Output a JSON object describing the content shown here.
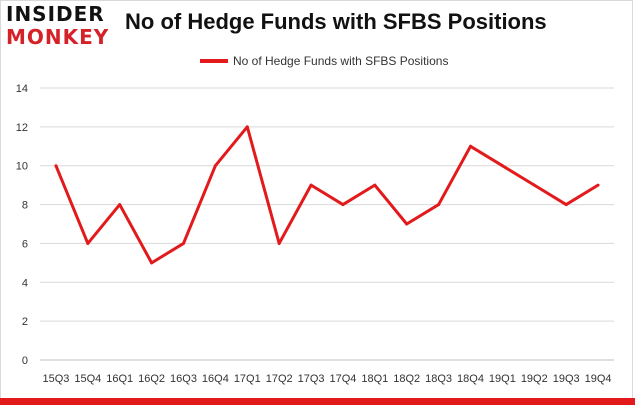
{
  "brand": {
    "line1": "INSIDER",
    "line2": "MONKEY",
    "accent_color": "#d42228"
  },
  "chart_data": {
    "type": "line",
    "title": "No of Hedge Funds with SFBS Positions",
    "xlabel": "",
    "ylabel": "",
    "categories": [
      "15Q3",
      "15Q4",
      "16Q1",
      "16Q2",
      "16Q3",
      "16Q4",
      "17Q1",
      "17Q2",
      "17Q3",
      "17Q4",
      "18Q1",
      "18Q2",
      "18Q3",
      "18Q4",
      "19Q1",
      "19Q2",
      "19Q3",
      "19Q4"
    ],
    "series": [
      {
        "name": "No of Hedge Funds with SFBS Positions",
        "color": "#e31a1c",
        "values": [
          10,
          6,
          8,
          5,
          6,
          10,
          12,
          6,
          9,
          8,
          9,
          7,
          8,
          11,
          10,
          9,
          8,
          9
        ]
      }
    ],
    "ylim": [
      0,
      14
    ],
    "yticks": [
      0,
      2,
      4,
      6,
      8,
      10,
      12,
      14
    ],
    "grid": true,
    "legend_position": "top-center"
  }
}
